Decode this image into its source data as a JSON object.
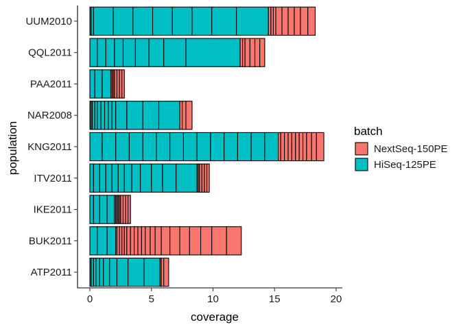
{
  "chart_data": {
    "type": "bar",
    "orientation": "horizontal",
    "stacked": true,
    "xlabel": "coverage",
    "ylabel": "population",
    "xlim": [
      0,
      20
    ],
    "xticks": [
      "0",
      "5",
      "10",
      "15",
      "20"
    ],
    "grid": false,
    "legend": {
      "title": "batch",
      "placement": "right"
    },
    "series": [
      {
        "name": "NextSeq-150PE",
        "color": "#F8766D"
      },
      {
        "name": "HiSeq-125PE",
        "color": "#00BFC4"
      }
    ],
    "categories": [
      "UUM2010",
      "QQL2011",
      "PAA2011",
      "NAR2008",
      "KNG2011",
      "ITV2011",
      "IKE2011",
      "BUK2011",
      "ATP2011"
    ],
    "bars": [
      {
        "population": "UUM2010",
        "samples": [
          {
            "batch": "HiSeq-125PE",
            "coverage": 0.1
          },
          {
            "batch": "HiSeq-125PE",
            "coverage": 0.2
          },
          {
            "batch": "HiSeq-125PE",
            "coverage": 1.6
          },
          {
            "batch": "HiSeq-125PE",
            "coverage": 1.6
          },
          {
            "batch": "HiSeq-125PE",
            "coverage": 1.6
          },
          {
            "batch": "HiSeq-125PE",
            "coverage": 1.6
          },
          {
            "batch": "HiSeq-125PE",
            "coverage": 1.6
          },
          {
            "batch": "HiSeq-125PE",
            "coverage": 1.6
          },
          {
            "batch": "HiSeq-125PE",
            "coverage": 2.0
          },
          {
            "batch": "HiSeq-125PE",
            "coverage": 2.6
          },
          {
            "batch": "NextSeq-150PE",
            "coverage": 0.2
          },
          {
            "batch": "NextSeq-150PE",
            "coverage": 0.2
          },
          {
            "batch": "NextSeq-150PE",
            "coverage": 0.2
          },
          {
            "batch": "NextSeq-150PE",
            "coverage": 0.5
          },
          {
            "batch": "NextSeq-150PE",
            "coverage": 0.5
          },
          {
            "batch": "NextSeq-150PE",
            "coverage": 0.5
          },
          {
            "batch": "NextSeq-150PE",
            "coverage": 0.5
          },
          {
            "batch": "NextSeq-150PE",
            "coverage": 0.6
          },
          {
            "batch": "NextSeq-150PE",
            "coverage": 0.6
          }
        ]
      },
      {
        "population": "QQL2011",
        "samples": [
          {
            "batch": "HiSeq-125PE",
            "coverage": 0.6
          },
          {
            "batch": "HiSeq-125PE",
            "coverage": 0.7
          },
          {
            "batch": "HiSeq-125PE",
            "coverage": 0.7
          },
          {
            "batch": "HiSeq-125PE",
            "coverage": 0.7
          },
          {
            "batch": "HiSeq-125PE",
            "coverage": 1.0
          },
          {
            "batch": "HiSeq-125PE",
            "coverage": 1.1
          },
          {
            "batch": "HiSeq-125PE",
            "coverage": 1.2
          },
          {
            "batch": "HiSeq-125PE",
            "coverage": 1.8
          },
          {
            "batch": "HiSeq-125PE",
            "coverage": 4.4
          },
          {
            "batch": "NextSeq-150PE",
            "coverage": 0.2
          },
          {
            "batch": "NextSeq-150PE",
            "coverage": 0.2
          },
          {
            "batch": "NextSeq-150PE",
            "coverage": 0.4
          },
          {
            "batch": "NextSeq-150PE",
            "coverage": 0.4
          },
          {
            "batch": "NextSeq-150PE",
            "coverage": 0.4
          },
          {
            "batch": "NextSeq-150PE",
            "coverage": 0.4
          }
        ]
      },
      {
        "population": "PAA2011",
        "samples": [
          {
            "batch": "HiSeq-125PE",
            "coverage": 0.4
          },
          {
            "batch": "HiSeq-125PE",
            "coverage": 0.6
          },
          {
            "batch": "HiSeq-125PE",
            "coverage": 0.7
          },
          {
            "batch": "NextSeq-150PE",
            "coverage": 0.1
          },
          {
            "batch": "NextSeq-150PE",
            "coverage": 0.1
          },
          {
            "batch": "NextSeq-150PE",
            "coverage": 0.1
          },
          {
            "batch": "NextSeq-150PE",
            "coverage": 0.2
          },
          {
            "batch": "NextSeq-150PE",
            "coverage": 0.2
          },
          {
            "batch": "NextSeq-150PE",
            "coverage": 0.2
          },
          {
            "batch": "NextSeq-150PE",
            "coverage": 0.2
          }
        ]
      },
      {
        "population": "NAR2008",
        "samples": [
          {
            "batch": "HiSeq-125PE",
            "coverage": 0.1
          },
          {
            "batch": "HiSeq-125PE",
            "coverage": 0.1
          },
          {
            "batch": "HiSeq-125PE",
            "coverage": 0.2
          },
          {
            "batch": "HiSeq-125PE",
            "coverage": 0.2
          },
          {
            "batch": "HiSeq-125PE",
            "coverage": 0.3
          },
          {
            "batch": "HiSeq-125PE",
            "coverage": 0.3
          },
          {
            "batch": "HiSeq-125PE",
            "coverage": 0.3
          },
          {
            "batch": "HiSeq-125PE",
            "coverage": 0.3
          },
          {
            "batch": "HiSeq-125PE",
            "coverage": 0.3
          },
          {
            "batch": "HiSeq-125PE",
            "coverage": 0.9
          },
          {
            "batch": "HiSeq-125PE",
            "coverage": 1.3
          },
          {
            "batch": "HiSeq-125PE",
            "coverage": 1.3
          },
          {
            "batch": "HiSeq-125PE",
            "coverage": 1.7
          },
          {
            "batch": "NextSeq-150PE",
            "coverage": 0.2
          },
          {
            "batch": "NextSeq-150PE",
            "coverage": 0.3
          },
          {
            "batch": "NextSeq-150PE",
            "coverage": 0.5
          }
        ]
      },
      {
        "population": "KNG2011",
        "samples": [
          {
            "batch": "HiSeq-125PE",
            "coverage": 1.0
          },
          {
            "batch": "HiSeq-125PE",
            "coverage": 1.1
          },
          {
            "batch": "HiSeq-125PE",
            "coverage": 1.1
          },
          {
            "batch": "HiSeq-125PE",
            "coverage": 1.1
          },
          {
            "batch": "HiSeq-125PE",
            "coverage": 1.1
          },
          {
            "batch": "HiSeq-125PE",
            "coverage": 1.1
          },
          {
            "batch": "HiSeq-125PE",
            "coverage": 1.1
          },
          {
            "batch": "HiSeq-125PE",
            "coverage": 1.1
          },
          {
            "batch": "HiSeq-125PE",
            "coverage": 1.1
          },
          {
            "batch": "HiSeq-125PE",
            "coverage": 1.1
          },
          {
            "batch": "HiSeq-125PE",
            "coverage": 1.1
          },
          {
            "batch": "HiSeq-125PE",
            "coverage": 1.1
          },
          {
            "batch": "HiSeq-125PE",
            "coverage": 1.1
          },
          {
            "batch": "HiSeq-125PE",
            "coverage": 1.1
          },
          {
            "batch": "NextSeq-150PE",
            "coverage": 0.2
          },
          {
            "batch": "NextSeq-150PE",
            "coverage": 0.3
          },
          {
            "batch": "NextSeq-150PE",
            "coverage": 0.3
          },
          {
            "batch": "NextSeq-150PE",
            "coverage": 0.3
          },
          {
            "batch": "NextSeq-150PE",
            "coverage": 0.3
          },
          {
            "batch": "NextSeq-150PE",
            "coverage": 0.3
          },
          {
            "batch": "NextSeq-150PE",
            "coverage": 0.3
          },
          {
            "batch": "NextSeq-150PE",
            "coverage": 0.3
          },
          {
            "batch": "NextSeq-150PE",
            "coverage": 0.4
          },
          {
            "batch": "NextSeq-150PE",
            "coverage": 0.4
          },
          {
            "batch": "NextSeq-150PE",
            "coverage": 0.6
          }
        ]
      },
      {
        "population": "ITV2011",
        "samples": [
          {
            "batch": "HiSeq-125PE",
            "coverage": 0.3
          },
          {
            "batch": "HiSeq-125PE",
            "coverage": 0.5
          },
          {
            "batch": "HiSeq-125PE",
            "coverage": 0.5
          },
          {
            "batch": "HiSeq-125PE",
            "coverage": 0.5
          },
          {
            "batch": "HiSeq-125PE",
            "coverage": 0.5
          },
          {
            "batch": "HiSeq-125PE",
            "coverage": 0.5
          },
          {
            "batch": "HiSeq-125PE",
            "coverage": 0.6
          },
          {
            "batch": "HiSeq-125PE",
            "coverage": 0.7
          },
          {
            "batch": "HiSeq-125PE",
            "coverage": 0.9
          },
          {
            "batch": "HiSeq-125PE",
            "coverage": 0.9
          },
          {
            "batch": "HiSeq-125PE",
            "coverage": 1.1
          },
          {
            "batch": "HiSeq-125PE",
            "coverage": 1.7
          },
          {
            "batch": "NextSeq-150PE",
            "coverage": 0.1
          },
          {
            "batch": "NextSeq-150PE",
            "coverage": 0.1
          },
          {
            "batch": "NextSeq-150PE",
            "coverage": 0.2
          },
          {
            "batch": "NextSeq-150PE",
            "coverage": 0.2
          },
          {
            "batch": "NextSeq-150PE",
            "coverage": 0.2
          },
          {
            "batch": "NextSeq-150PE",
            "coverage": 0.2
          }
        ]
      },
      {
        "population": "IKE2011",
        "samples": [
          {
            "batch": "HiSeq-125PE",
            "coverage": 0.3
          },
          {
            "batch": "HiSeq-125PE",
            "coverage": 0.5
          },
          {
            "batch": "HiSeq-125PE",
            "coverage": 0.6
          },
          {
            "batch": "HiSeq-125PE",
            "coverage": 0.6
          },
          {
            "batch": "NextSeq-150PE",
            "coverage": 0.1
          },
          {
            "batch": "NextSeq-150PE",
            "coverage": 0.1
          },
          {
            "batch": "NextSeq-150PE",
            "coverage": 0.1
          },
          {
            "batch": "NextSeq-150PE",
            "coverage": 0.1
          },
          {
            "batch": "NextSeq-150PE",
            "coverage": 0.1
          },
          {
            "batch": "NextSeq-150PE",
            "coverage": 0.2
          },
          {
            "batch": "NextSeq-150PE",
            "coverage": 0.2
          },
          {
            "batch": "NextSeq-150PE",
            "coverage": 0.2
          },
          {
            "batch": "NextSeq-150PE",
            "coverage": 0.2
          }
        ]
      },
      {
        "population": "BUK2011",
        "samples": [
          {
            "batch": "HiSeq-125PE",
            "coverage": 0.6
          },
          {
            "batch": "HiSeq-125PE",
            "coverage": 0.8
          },
          {
            "batch": "HiSeq-125PE",
            "coverage": 0.7
          },
          {
            "batch": "NextSeq-150PE",
            "coverage": 0.1
          },
          {
            "batch": "NextSeq-150PE",
            "coverage": 0.2
          },
          {
            "batch": "NextSeq-150PE",
            "coverage": 0.2
          },
          {
            "batch": "NextSeq-150PE",
            "coverage": 0.2
          },
          {
            "batch": "NextSeq-150PE",
            "coverage": 0.2
          },
          {
            "batch": "NextSeq-150PE",
            "coverage": 0.3
          },
          {
            "batch": "NextSeq-150PE",
            "coverage": 0.3
          },
          {
            "batch": "NextSeq-150PE",
            "coverage": 0.3
          },
          {
            "batch": "NextSeq-150PE",
            "coverage": 0.3
          },
          {
            "batch": "NextSeq-150PE",
            "coverage": 0.3
          },
          {
            "batch": "NextSeq-150PE",
            "coverage": 0.4
          },
          {
            "batch": "NextSeq-150PE",
            "coverage": 0.4
          },
          {
            "batch": "NextSeq-150PE",
            "coverage": 0.5
          },
          {
            "batch": "NextSeq-150PE",
            "coverage": 0.7
          },
          {
            "batch": "NextSeq-150PE",
            "coverage": 0.8
          },
          {
            "batch": "NextSeq-150PE",
            "coverage": 0.8
          },
          {
            "batch": "NextSeq-150PE",
            "coverage": 0.9
          },
          {
            "batch": "NextSeq-150PE",
            "coverage": 0.9
          },
          {
            "batch": "NextSeq-150PE",
            "coverage": 1.2
          },
          {
            "batch": "NextSeq-150PE",
            "coverage": 1.2
          }
        ]
      },
      {
        "population": "ATP2011",
        "samples": [
          {
            "batch": "HiSeq-125PE",
            "coverage": 0.1
          },
          {
            "batch": "HiSeq-125PE",
            "coverage": 0.2
          },
          {
            "batch": "HiSeq-125PE",
            "coverage": 0.2
          },
          {
            "batch": "HiSeq-125PE",
            "coverage": 0.3
          },
          {
            "batch": "HiSeq-125PE",
            "coverage": 0.3
          },
          {
            "batch": "HiSeq-125PE",
            "coverage": 0.5
          },
          {
            "batch": "HiSeq-125PE",
            "coverage": 0.6
          },
          {
            "batch": "HiSeq-125PE",
            "coverage": 0.9
          },
          {
            "batch": "HiSeq-125PE",
            "coverage": 1.3
          },
          {
            "batch": "HiSeq-125PE",
            "coverage": 1.3
          },
          {
            "batch": "NextSeq-150PE",
            "coverage": 0.1
          },
          {
            "batch": "NextSeq-150PE",
            "coverage": 0.2
          },
          {
            "batch": "NextSeq-150PE",
            "coverage": 0.4
          }
        ]
      }
    ]
  }
}
